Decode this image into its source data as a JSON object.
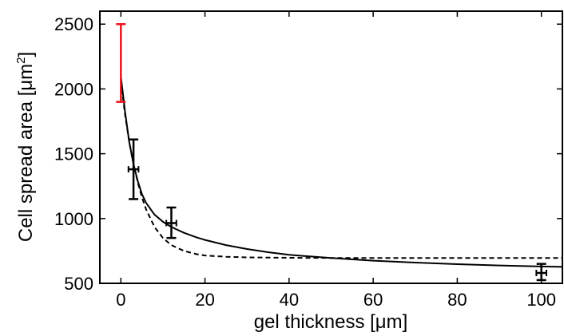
{
  "chart_data": {
    "type": "scatter",
    "xlabel": "gel thickness [μm]",
    "ylabel_main": "Cell spread area [μm",
    "ylabel_sup": "2",
    "ylabel_close": "]",
    "xlim": [
      -5,
      105
    ],
    "ylim": [
      500,
      2600
    ],
    "x_ticks": [
      0,
      20,
      40,
      60,
      80,
      100
    ],
    "y_ticks": [
      500,
      1000,
      1500,
      2000,
      2500
    ],
    "grid": false,
    "series": [
      {
        "kind": "errorbar",
        "color": "#e8141c",
        "points": [
          {
            "x": 0,
            "y": 2200,
            "y_low": 1900,
            "y_high": 2500,
            "x_err": 0
          }
        ]
      },
      {
        "kind": "errorbar",
        "color": "#000000",
        "points": [
          {
            "x": 3,
            "y": 1380,
            "y_low": 1150,
            "y_high": 1610,
            "x_err": 1.2
          },
          {
            "x": 12,
            "y": 965,
            "y_low": 850,
            "y_high": 1085,
            "x_err": 1.2
          },
          {
            "x": 100,
            "y": 580,
            "y_low": 525,
            "y_high": 650,
            "x_err": 1.2
          }
        ]
      },
      {
        "kind": "line",
        "style": "solid",
        "color": "#000000",
        "x": [
          0,
          1,
          2,
          3,
          4,
          5,
          6,
          8,
          10,
          12,
          15,
          18,
          20,
          25,
          30,
          35,
          40,
          50,
          60,
          70,
          80,
          90,
          100,
          105
        ],
        "y": [
          2100,
          1820,
          1590,
          1420,
          1290,
          1190,
          1120,
          1030,
          975,
          935,
          890,
          855,
          835,
          795,
          765,
          740,
          720,
          695,
          675,
          660,
          648,
          638,
          630,
          627
        ]
      },
      {
        "kind": "line",
        "style": "dashed",
        "color": "#000000",
        "x": [
          0,
          1,
          2,
          3,
          4,
          5,
          6,
          8,
          10,
          12,
          15,
          18,
          20,
          25,
          30,
          40,
          50,
          60,
          80,
          100,
          105
        ],
        "y": [
          2060,
          1800,
          1590,
          1420,
          1280,
          1165,
          1070,
          935,
          850,
          795,
          750,
          725,
          715,
          705,
          700,
          697,
          696,
          695,
          695,
          695,
          695
        ]
      }
    ]
  }
}
